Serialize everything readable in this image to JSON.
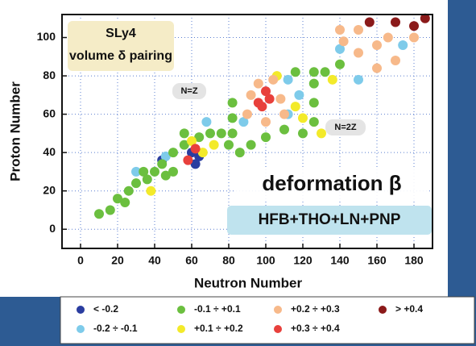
{
  "chart_data": {
    "type": "scatter",
    "x_label": "Neutron Number",
    "y_label": "Proton Number",
    "xlim": [
      -10,
      190
    ],
    "ylim": [
      -10,
      112
    ],
    "xticks": [
      0,
      20,
      40,
      60,
      80,
      100,
      120,
      140,
      160,
      180
    ],
    "yticks": [
      0,
      20,
      40,
      60,
      80,
      100
    ],
    "grid": true,
    "annotations": [
      "SLy4",
      "volume δ pairing",
      "N=Z",
      "N=2Z",
      "deformation β",
      "HFB+THO+LN+PNP"
    ],
    "series": [
      {
        "name": "< -0.2",
        "color": "#2a3da0",
        "x": [
          60,
          64,
          44,
          62
        ],
        "y": [
          40,
          38,
          36,
          34
        ]
      },
      {
        "name": "-0.2 ÷ -0.1",
        "color": "#7ecbea",
        "x": [
          30,
          46,
          68,
          88,
          112,
          118,
          112,
          140,
          150,
          174
        ],
        "y": [
          30,
          38,
          56,
          56,
          60,
          70,
          78,
          94,
          78,
          96
        ]
      },
      {
        "name": "-0.1 ÷ +0.1",
        "color": "#6bbf3f",
        "x": [
          10,
          16,
          20,
          26,
          30,
          36,
          24,
          40,
          44,
          50,
          50,
          56,
          64,
          70,
          76,
          82,
          82,
          82,
          86,
          92,
          100,
          110,
          120,
          126,
          126,
          126,
          126,
          116,
          132,
          140,
          80,
          46,
          34,
          56
        ],
        "y": [
          8,
          10,
          16,
          20,
          24,
          26,
          14,
          30,
          34,
          30,
          40,
          44,
          48,
          50,
          50,
          50,
          58,
          66,
          40,
          44,
          48,
          52,
          50,
          56,
          66,
          76,
          82,
          82,
          82,
          86,
          44,
          28,
          30,
          50
        ]
      },
      {
        "name": "+0.1 ÷ +0.2",
        "color": "#f3ea2a",
        "x": [
          38,
          60,
          72,
          66,
          116,
          120,
          106,
          136,
          130
        ],
        "y": [
          20,
          46,
          44,
          40,
          64,
          58,
          80,
          78,
          50
        ]
      },
      {
        "name": "+0.2 ÷ +0.3",
        "color": "#f7b98a",
        "x": [
          90,
          92,
          96,
          104,
          108,
          110,
          100,
          142,
          150,
          160,
          150,
          140,
          166,
          170,
          160,
          180
        ],
        "y": [
          60,
          70,
          76,
          78,
          68,
          60,
          56,
          98,
          92,
          96,
          104,
          104,
          100,
          88,
          84,
          100
        ]
      },
      {
        "name": "+0.3 ÷ +0.4",
        "color": "#e8403c",
        "x": [
          98,
          102,
          100,
          96,
          62,
          58
        ],
        "y": [
          64,
          68,
          72,
          66,
          42,
          36
        ]
      },
      {
        "name": "> +0.4",
        "color": "#8b1a1a",
        "x": [
          156,
          170,
          180,
          186
        ],
        "y": [
          108,
          108,
          106,
          110
        ]
      }
    ]
  }
}
